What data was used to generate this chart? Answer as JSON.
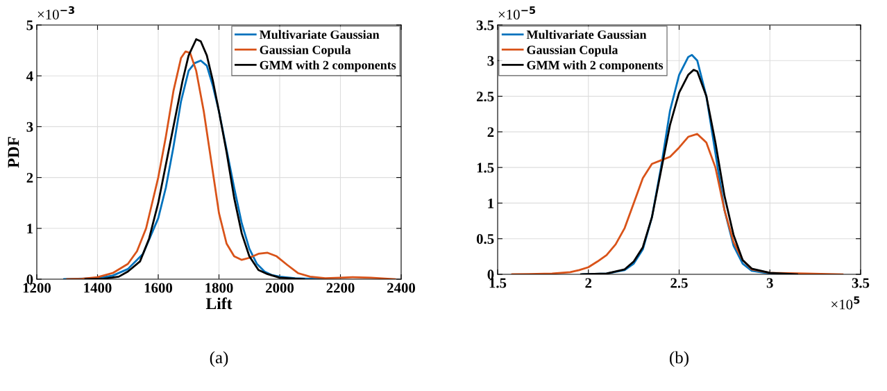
{
  "chart_data": [
    {
      "type": "line",
      "title": "(a)",
      "xlabel": "Lift",
      "ylabel": "PDF",
      "annotations": [
        "×10$^{−3}$"
      ],
      "xlim": [
        1200,
        2400
      ],
      "xticks": [
        1200,
        1400,
        1600,
        1800,
        2000,
        2200,
        2400
      ],
      "ylim": [
        0,
        5
      ],
      "yticks": [
        0,
        1,
        2,
        3,
        4,
        5
      ],
      "grid": true,
      "legend": "top right",
      "series": [
        {
          "name": "Multivariate Gaussian",
          "color": "#0072bd",
          "x": [
            1290,
            1400,
            1450,
            1500,
            1550,
            1600,
            1625,
            1650,
            1675,
            1700,
            1720,
            1740,
            1760,
            1780,
            1800,
            1820,
            1850,
            1875,
            1900,
            1925,
            1950,
            1975,
            2000,
            2050,
            2150
          ],
          "values": [
            0,
            0.02,
            0.07,
            0.2,
            0.5,
            1.2,
            1.8,
            2.6,
            3.5,
            4.1,
            4.25,
            4.3,
            4.2,
            3.8,
            3.3,
            2.7,
            1.8,
            1.1,
            0.6,
            0.3,
            0.15,
            0.08,
            0.05,
            0.02,
            0
          ]
        },
        {
          "name": "Gaussian Copula",
          "color": "#d95319",
          "x": [
            1300,
            1350,
            1400,
            1450,
            1500,
            1530,
            1560,
            1600,
            1625,
            1650,
            1675,
            1690,
            1705,
            1725,
            1750,
            1775,
            1800,
            1825,
            1850,
            1875,
            1900,
            1930,
            1960,
            1990,
            2025,
            2060,
            2100,
            2150,
            2200,
            2240,
            2300,
            2380
          ],
          "values": [
            0,
            0.01,
            0.04,
            0.12,
            0.3,
            0.55,
            1.0,
            2.0,
            2.8,
            3.7,
            4.35,
            4.48,
            4.45,
            4.1,
            3.3,
            2.3,
            1.3,
            0.7,
            0.45,
            0.38,
            0.42,
            0.5,
            0.52,
            0.45,
            0.28,
            0.12,
            0.05,
            0.02,
            0.03,
            0.04,
            0.03,
            0
          ]
        },
        {
          "name": "GMM with 2 components",
          "color": "#000000",
          "x": [
            1360,
            1420,
            1470,
            1500,
            1540,
            1570,
            1600,
            1640,
            1680,
            1700,
            1725,
            1740,
            1760,
            1780,
            1800,
            1825,
            1850,
            1875,
            1900,
            1930,
            1960,
            2000,
            2080
          ],
          "values": [
            0,
            0.01,
            0.05,
            0.15,
            0.35,
            0.8,
            1.5,
            2.7,
            3.9,
            4.4,
            4.72,
            4.68,
            4.4,
            3.9,
            3.3,
            2.5,
            1.6,
            0.9,
            0.45,
            0.18,
            0.1,
            0.03,
            0
          ]
        }
      ]
    },
    {
      "type": "line",
      "title": "(b)",
      "annotations": [
        "×10$^{−5}$",
        "×10$^{5}$"
      ],
      "xlim": [
        1.5,
        3.5
      ],
      "xticks": [
        1.5,
        2,
        2.5,
        3,
        3.5
      ],
      "ylim": [
        0,
        3.5
      ],
      "yticks": [
        0,
        0.5,
        1,
        1.5,
        2,
        2.5,
        3,
        3.5
      ],
      "grid": true,
      "legend": "top left",
      "series": [
        {
          "name": "Multivariate Gaussian",
          "color": "#0072bd",
          "x": [
            1.97,
            2.1,
            2.2,
            2.25,
            2.3,
            2.35,
            2.4,
            2.45,
            2.5,
            2.55,
            2.57,
            2.6,
            2.65,
            2.7,
            2.75,
            2.8,
            2.85,
            2.9,
            3.0,
            3.1
          ],
          "values": [
            0,
            0.01,
            0.06,
            0.15,
            0.35,
            0.8,
            1.5,
            2.3,
            2.8,
            3.05,
            3.08,
            3.0,
            2.5,
            1.7,
            0.9,
            0.4,
            0.15,
            0.05,
            0.01,
            0
          ]
        },
        {
          "name": "Gaussian Copula",
          "color": "#d95319",
          "x": [
            1.58,
            1.8,
            1.9,
            1.95,
            2.0,
            2.05,
            2.1,
            2.15,
            2.2,
            2.25,
            2.3,
            2.35,
            2.4,
            2.45,
            2.5,
            2.55,
            2.6,
            2.65,
            2.7,
            2.75,
            2.8,
            2.85,
            2.9,
            3.0,
            3.2,
            3.4
          ],
          "values": [
            0,
            0.01,
            0.03,
            0.06,
            0.1,
            0.18,
            0.27,
            0.42,
            0.65,
            1.0,
            1.35,
            1.55,
            1.6,
            1.65,
            1.78,
            1.93,
            1.97,
            1.85,
            1.5,
            0.9,
            0.45,
            0.2,
            0.07,
            0.02,
            0.01,
            0
          ]
        },
        {
          "name": "GMM with 2 components",
          "color": "#000000",
          "x": [
            1.96,
            2.1,
            2.2,
            2.25,
            2.3,
            2.35,
            2.4,
            2.45,
            2.5,
            2.55,
            2.58,
            2.6,
            2.65,
            2.7,
            2.75,
            2.8,
            2.85,
            2.9,
            3.0,
            3.15
          ],
          "values": [
            0,
            0.01,
            0.07,
            0.18,
            0.38,
            0.8,
            1.45,
            2.1,
            2.55,
            2.8,
            2.87,
            2.85,
            2.5,
            1.85,
            1.1,
            0.55,
            0.2,
            0.08,
            0.02,
            0
          ]
        }
      ]
    }
  ]
}
